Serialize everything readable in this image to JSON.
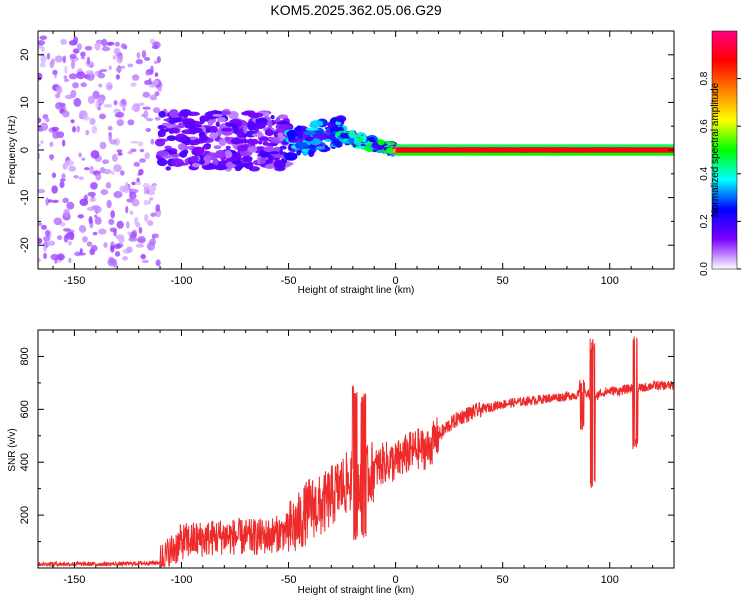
{
  "title": "KOM5.2025.362.05.06.G29",
  "colors": {
    "snr_line": "#ee2a2a",
    "axis": "#000000",
    "background": "#ffffff"
  },
  "chart_data": [
    {
      "type": "heatmap",
      "name": "spectrogram",
      "xlabel": "Height of straight line (km)",
      "ylabel": "Frequency (Hz)",
      "xlim": [
        -167,
        130
      ],
      "ylim": [
        -25,
        25
      ],
      "xticks": [
        -150,
        -100,
        -50,
        0,
        50,
        100
      ],
      "yticks": [
        -20,
        -10,
        0,
        10,
        20
      ],
      "colorbar": {
        "label": "Normalized spectral amplitude",
        "range": [
          0,
          1
        ],
        "ticks": [
          "0.0",
          "0.2",
          "0.4",
          "0.6",
          "0.8"
        ],
        "tick_values": [
          0.0,
          0.2,
          0.4,
          0.6,
          0.8
        ],
        "colormap": [
          "#ffffff",
          "#7b00ff",
          "#0000ff",
          "#00ffff",
          "#00ff00",
          "#ffff00",
          "#ff8000",
          "#ff0000",
          "#ff0080"
        ]
      },
      "features": [
        {
          "x_range": [
            -167,
            -110
          ],
          "freq_center": 0,
          "freq_spread": 24,
          "amplitude": 0.08,
          "desc": "scattered low amplitude"
        },
        {
          "x_range": [
            -110,
            -50
          ],
          "freq_center": 2,
          "freq_spread": 6,
          "amplitude": 0.15
        },
        {
          "x_range": [
            -50,
            -25
          ],
          "freq_center": 3,
          "freq_spread": 3,
          "amplitude": 0.3
        },
        {
          "x_range": [
            -25,
            0
          ],
          "freq_center": 0,
          "freq_spread": 1,
          "amplitude": 0.4
        },
        {
          "x_range": [
            0,
            130
          ],
          "freq_center": 0,
          "freq_spread": 0.5,
          "amplitude": 0.9
        }
      ]
    },
    {
      "type": "line",
      "name": "snr",
      "xlabel": "Height of straight line (km)",
      "ylabel": "SNR (v/v)",
      "xlim": [
        -167,
        130
      ],
      "ylim": [
        0,
        900
      ],
      "xticks": [
        -150,
        -100,
        -50,
        0,
        50,
        100
      ],
      "yticks": [
        200,
        400,
        600,
        800
      ],
      "series": [
        {
          "name": "SNR",
          "x": [
            -167,
            -150,
            -130,
            -110,
            -105,
            -100,
            -90,
            -80,
            -70,
            -60,
            -50,
            -45,
            -40,
            -35,
            -30,
            -25,
            -20,
            -15,
            -10,
            -5,
            0,
            5,
            10,
            15,
            20,
            25,
            30,
            40,
            50,
            60,
            70,
            80,
            85,
            88,
            90,
            92,
            95,
            100,
            105,
            110,
            112,
            115,
            120,
            125,
            130
          ],
          "y": [
            15,
            15,
            15,
            20,
            60,
            100,
            110,
            120,
            115,
            120,
            140,
            170,
            230,
            230,
            270,
            310,
            330,
            330,
            370,
            400,
            400,
            430,
            450,
            450,
            500,
            540,
            570,
            600,
            620,
            630,
            640,
            650,
            655,
            660,
            660,
            620,
            660,
            670,
            670,
            680,
            680,
            680,
            690,
            690,
            690
          ]
        }
      ],
      "spikes": [
        {
          "x": 92,
          "min": 300,
          "max": 880
        },
        {
          "x": 112,
          "min": 450,
          "max": 890
        },
        {
          "x": 87,
          "min": 520,
          "max": 720
        },
        {
          "x": -19,
          "min": 100,
          "max": 690
        },
        {
          "x": -15,
          "min": 100,
          "max": 660
        }
      ]
    }
  ]
}
